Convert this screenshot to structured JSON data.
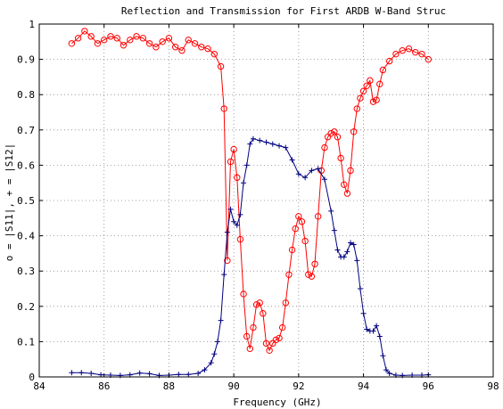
{
  "chart_data": {
    "type": "line",
    "title": "Reflection and Transmission for First ARDB W-Band Struc",
    "xlabel": "Frequency (GHz)",
    "ylabel": "o = |S11|, + = |S12|",
    "xlim": [
      84,
      98
    ],
    "ylim": [
      0,
      1
    ],
    "xticks": [
      "84",
      "86",
      "88",
      "90",
      "92",
      "94",
      "96",
      "98"
    ],
    "yticks": [
      "0",
      "0.1",
      "0.2",
      "0.3",
      "0.4",
      "0.5",
      "0.6",
      "0.7",
      "0.8",
      "0.9",
      "1"
    ],
    "grid": true,
    "series": [
      {
        "name": "|S11|",
        "marker": "circle",
        "color": "#ff0000",
        "x": [
          85.0,
          85.2,
          85.4,
          85.6,
          85.8,
          86.0,
          86.2,
          86.4,
          86.6,
          86.8,
          87.0,
          87.2,
          87.4,
          87.6,
          87.8,
          88.0,
          88.2,
          88.4,
          88.6,
          88.8,
          89.0,
          89.2,
          89.4,
          89.6,
          89.7,
          89.8,
          89.9,
          90.0,
          90.1,
          90.2,
          90.3,
          90.4,
          90.5,
          90.6,
          90.7,
          90.8,
          90.9,
          91.0,
          91.1,
          91.2,
          91.3,
          91.4,
          91.5,
          91.6,
          91.7,
          91.8,
          91.9,
          92.0,
          92.1,
          92.2,
          92.3,
          92.4,
          92.5,
          92.6,
          92.7,
          92.8,
          92.9,
          93.0,
          93.1,
          93.2,
          93.3,
          93.4,
          93.5,
          93.6,
          93.7,
          93.8,
          93.9,
          94.0,
          94.1,
          94.2,
          94.3,
          94.4,
          94.5,
          94.6,
          94.8,
          95.0,
          95.2,
          95.4,
          95.6,
          95.8,
          96.0
        ],
        "values": [
          0.945,
          0.96,
          0.98,
          0.965,
          0.945,
          0.955,
          0.965,
          0.96,
          0.94,
          0.955,
          0.965,
          0.96,
          0.945,
          0.935,
          0.95,
          0.96,
          0.935,
          0.925,
          0.955,
          0.945,
          0.935,
          0.93,
          0.915,
          0.88,
          0.76,
          0.33,
          0.61,
          0.645,
          0.565,
          0.39,
          0.235,
          0.115,
          0.08,
          0.14,
          0.205,
          0.21,
          0.18,
          0.095,
          0.075,
          0.095,
          0.105,
          0.11,
          0.14,
          0.21,
          0.29,
          0.36,
          0.42,
          0.455,
          0.44,
          0.385,
          0.29,
          0.285,
          0.32,
          0.455,
          0.585,
          0.65,
          0.68,
          0.69,
          0.695,
          0.68,
          0.62,
          0.545,
          0.52,
          0.585,
          0.695,
          0.76,
          0.79,
          0.81,
          0.825,
          0.84,
          0.78,
          0.785,
          0.83,
          0.87,
          0.895,
          0.915,
          0.925,
          0.93,
          0.92,
          0.915,
          0.9
        ]
      },
      {
        "name": "|S12|",
        "marker": "plus",
        "color": "#00007f",
        "x": [
          85.0,
          85.3,
          85.6,
          85.9,
          86.2,
          86.5,
          86.8,
          87.1,
          87.4,
          87.7,
          88.0,
          88.3,
          88.6,
          88.9,
          89.1,
          89.3,
          89.4,
          89.5,
          89.6,
          89.7,
          89.8,
          89.9,
          90.0,
          90.1,
          90.2,
          90.3,
          90.4,
          90.5,
          90.6,
          90.8,
          91.0,
          91.2,
          91.4,
          91.6,
          91.8,
          92.0,
          92.2,
          92.4,
          92.6,
          92.8,
          93.0,
          93.1,
          93.2,
          93.3,
          93.4,
          93.5,
          93.6,
          93.7,
          93.8,
          93.9,
          94.0,
          94.1,
          94.2,
          94.3,
          94.4,
          94.5,
          94.6,
          94.7,
          94.8,
          95.0,
          95.2,
          95.5,
          95.8,
          96.0
        ],
        "values": [
          0.012,
          0.012,
          0.01,
          0.006,
          0.005,
          0.004,
          0.006,
          0.011,
          0.009,
          0.004,
          0.005,
          0.007,
          0.007,
          0.01,
          0.02,
          0.04,
          0.065,
          0.1,
          0.16,
          0.29,
          0.41,
          0.475,
          0.44,
          0.43,
          0.46,
          0.55,
          0.6,
          0.66,
          0.675,
          0.67,
          0.665,
          0.66,
          0.655,
          0.65,
          0.615,
          0.575,
          0.565,
          0.585,
          0.59,
          0.56,
          0.47,
          0.415,
          0.36,
          0.34,
          0.34,
          0.355,
          0.38,
          0.375,
          0.33,
          0.25,
          0.18,
          0.135,
          0.13,
          0.13,
          0.145,
          0.115,
          0.06,
          0.02,
          0.01,
          0.005,
          0.004,
          0.005,
          0.005,
          0.006
        ]
      }
    ]
  }
}
